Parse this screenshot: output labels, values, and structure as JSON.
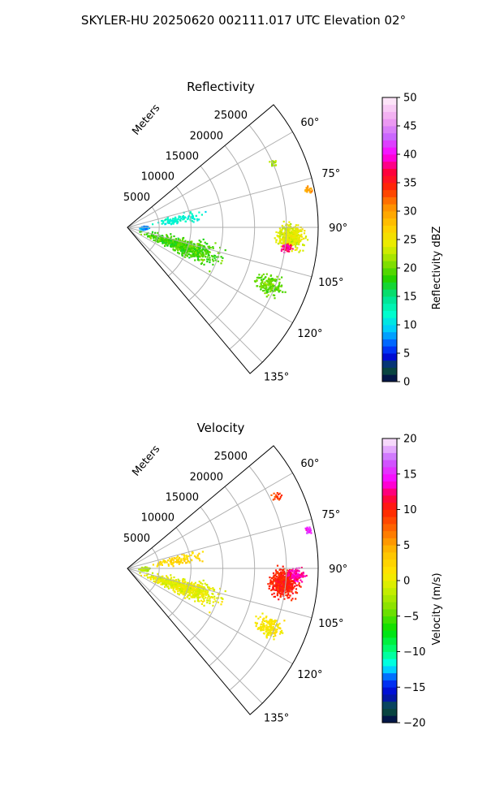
{
  "figure": {
    "title": "SKYLER-HU  20250620  002111.017 UTC Elevation 02°"
  },
  "chart_data": [
    {
      "type": "heatmap",
      "subtype": "polar-sector-ppi",
      "title": "Reflectivity",
      "radial_axis_label": "Meters",
      "radial_ticks": [
        "5000",
        "10000",
        "15000",
        "20000",
        "25000"
      ],
      "radial_tick_values": [
        5000,
        10000,
        15000,
        20000,
        25000
      ],
      "rmax": 30000,
      "theta_range_deg": [
        50,
        140
      ],
      "theta_ticks": [
        "60°",
        "75°",
        "90°",
        "105°",
        "120°",
        "135°"
      ],
      "theta_tick_values": [
        60,
        75,
        90,
        105,
        120,
        135
      ],
      "colorbar": {
        "label": "Reflectivity dBZ",
        "min": 0,
        "max": 50,
        "ticks": [
          "0",
          "5",
          "10",
          "15",
          "20",
          "25",
          "30",
          "35",
          "40",
          "45",
          "50"
        ],
        "stops": [
          {
            "v": 0,
            "c": "#00004a"
          },
          {
            "v": 2.5,
            "c": "#0a5a3c"
          },
          {
            "v": 4,
            "c": "#0000c8"
          },
          {
            "v": 6,
            "c": "#0040ff"
          },
          {
            "v": 9,
            "c": "#00c8ff"
          },
          {
            "v": 12,
            "c": "#00ffcc"
          },
          {
            "v": 15,
            "c": "#00e08a"
          },
          {
            "v": 18,
            "c": "#20d000"
          },
          {
            "v": 21,
            "c": "#8ce000"
          },
          {
            "v": 24,
            "c": "#e8f000"
          },
          {
            "v": 27,
            "c": "#ffd000"
          },
          {
            "v": 31,
            "c": "#ff8c00"
          },
          {
            "v": 34,
            "c": "#ff2a00"
          },
          {
            "v": 37,
            "c": "#ff0040"
          },
          {
            "v": 40,
            "c": "#ff00ff"
          },
          {
            "v": 43,
            "c": "#c864ff"
          },
          {
            "v": 46,
            "c": "#f0a0f0"
          },
          {
            "v": 50,
            "c": "#fff0fa"
          }
        ]
      },
      "echo_regions": [
        {
          "theta": 93,
          "r": 25500,
          "dtheta": 12,
          "dr": 6000,
          "value": 24,
          "density": 1.0
        },
        {
          "theta": 97,
          "r": 25000,
          "dtheta": 4,
          "dr": 2500,
          "value": 38,
          "density": 0.9
        },
        {
          "theta": 78,
          "r": 29000,
          "dtheta": 3,
          "dr": 1500,
          "value": 30,
          "density": 0.8
        },
        {
          "theta": 112,
          "r": 24000,
          "dtheta": 10,
          "dr": 6000,
          "value": 20,
          "density": 0.45
        },
        {
          "theta": 108,
          "r": 9000,
          "dtheta": 22,
          "dr": 16000,
          "value": 19,
          "density": 0.3
        },
        {
          "theta": 90,
          "r": 2500,
          "dtheta": 18,
          "dr": 2000,
          "value": 8,
          "density": 0.5
        },
        {
          "theta": 66,
          "r": 25000,
          "dtheta": 4,
          "dr": 2000,
          "value": 22,
          "density": 0.4
        },
        {
          "theta": 80,
          "r": 8000,
          "dtheta": 14,
          "dr": 10000,
          "value": 12,
          "density": 0.12
        }
      ]
    },
    {
      "type": "heatmap",
      "subtype": "polar-sector-ppi",
      "title": "Velocity",
      "radial_axis_label": "Meters",
      "radial_ticks": [
        "5000",
        "10000",
        "15000",
        "20000",
        "25000"
      ],
      "radial_tick_values": [
        5000,
        10000,
        15000,
        20000,
        25000
      ],
      "rmax": 30000,
      "theta_range_deg": [
        50,
        140
      ],
      "theta_ticks": [
        "60°",
        "75°",
        "90°",
        "105°",
        "120°",
        "135°"
      ],
      "theta_tick_values": [
        60,
        75,
        90,
        105,
        120,
        135
      ],
      "colorbar": {
        "label": "Velocity (m/s)",
        "min": -20,
        "max": 20,
        "ticks": [
          "−20",
          "−15",
          "−10",
          "−5",
          "0",
          "5",
          "10",
          "15",
          "20"
        ],
        "stops": [
          {
            "v": -20,
            "c": "#00004a"
          },
          {
            "v": -18,
            "c": "#0a5a3c"
          },
          {
            "v": -16,
            "c": "#0000c8"
          },
          {
            "v": -14,
            "c": "#0040ff"
          },
          {
            "v": -12,
            "c": "#00ffff"
          },
          {
            "v": -10,
            "c": "#00ff80"
          },
          {
            "v": -7,
            "c": "#00e000"
          },
          {
            "v": -4,
            "c": "#80e000"
          },
          {
            "v": -1,
            "c": "#d0f000"
          },
          {
            "v": 1,
            "c": "#ffe800"
          },
          {
            "v": 4,
            "c": "#ffc000"
          },
          {
            "v": 7,
            "c": "#ff7000"
          },
          {
            "v": 10,
            "c": "#ff2000"
          },
          {
            "v": 12,
            "c": "#ff0050"
          },
          {
            "v": 14,
            "c": "#ff00ff"
          },
          {
            "v": 17,
            "c": "#c864ff"
          },
          {
            "v": 20,
            "c": "#fff0fa"
          }
        ]
      },
      "echo_regions": [
        {
          "theta": 95,
          "r": 24500,
          "dtheta": 14,
          "dr": 6000,
          "value": 10,
          "density": 1.0
        },
        {
          "theta": 92,
          "r": 26500,
          "dtheta": 6,
          "dr": 3500,
          "value": 13,
          "density": 0.9
        },
        {
          "theta": 78,
          "r": 29000,
          "dtheta": 3,
          "dr": 1500,
          "value": 15,
          "density": 0.8
        },
        {
          "theta": 112,
          "r": 24000,
          "dtheta": 10,
          "dr": 6000,
          "value": 1,
          "density": 0.45
        },
        {
          "theta": 108,
          "r": 9000,
          "dtheta": 22,
          "dr": 16000,
          "value": 0,
          "density": 0.3
        },
        {
          "theta": 90,
          "r": 2500,
          "dtheta": 18,
          "dr": 2000,
          "value": -2,
          "density": 0.5
        },
        {
          "theta": 64,
          "r": 26000,
          "dtheta": 4,
          "dr": 2000,
          "value": 9,
          "density": 0.4
        },
        {
          "theta": 80,
          "r": 8000,
          "dtheta": 14,
          "dr": 10000,
          "value": 2,
          "density": 0.12
        }
      ]
    }
  ]
}
